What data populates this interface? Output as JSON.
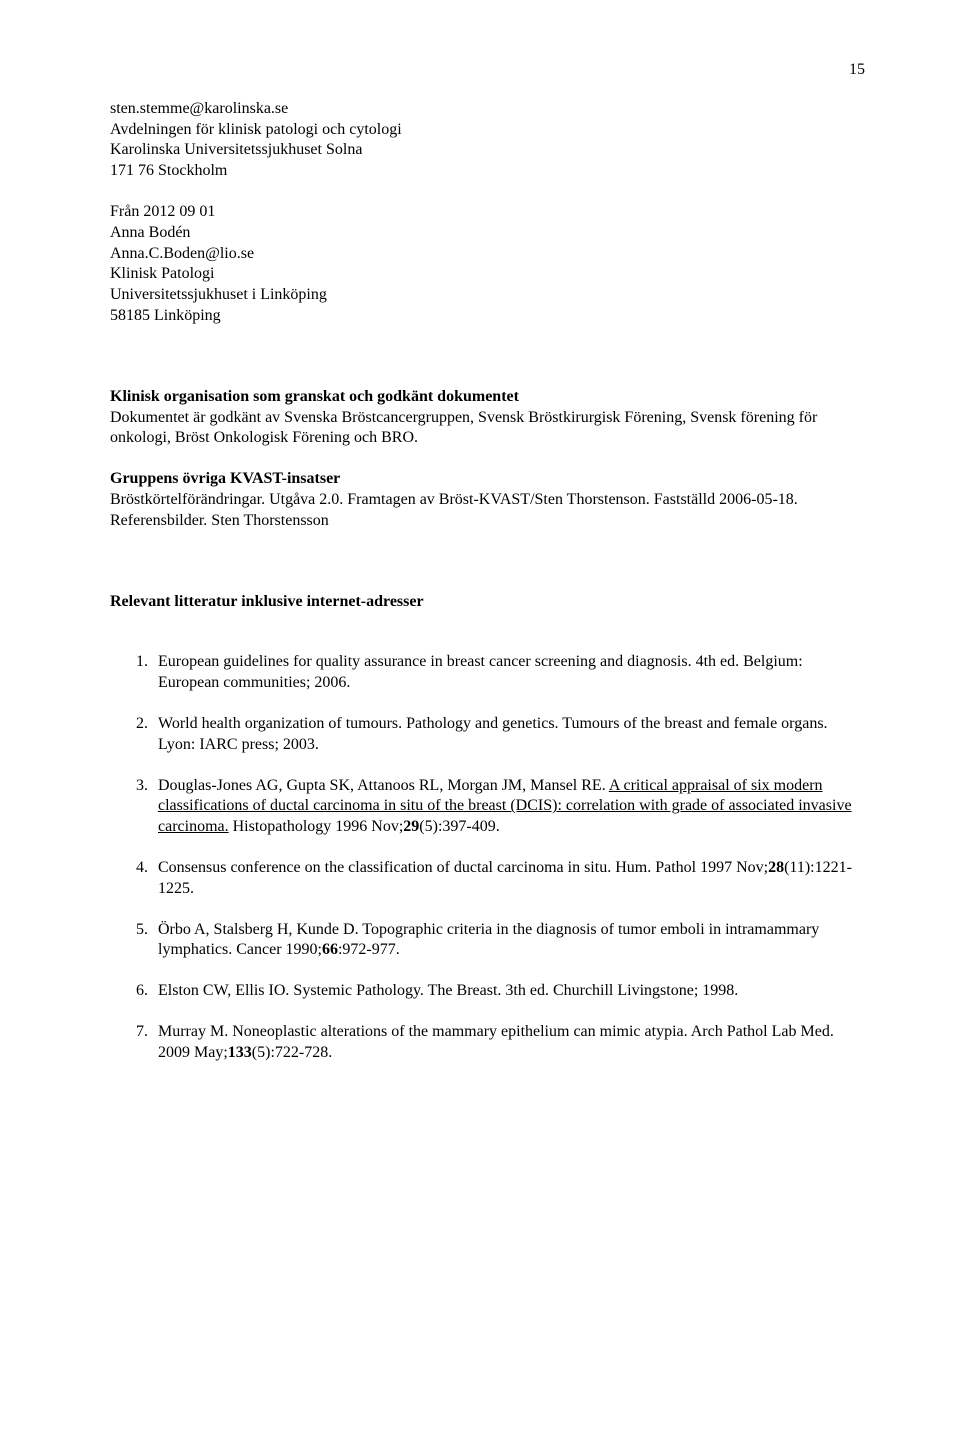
{
  "page_number": "15",
  "contact1": {
    "email": "sten.stemme@karolinska.se",
    "dept": "Avdelningen för klinisk patologi och cytologi",
    "hospital": "Karolinska Universitetssjukhuset Solna",
    "postal": "171 76 Stockholm"
  },
  "contact2": {
    "from_date": "Från 2012 09 01",
    "name": "Anna Bodén",
    "email": "Anna.C.Boden@lio.se",
    "dept": "Klinisk Patologi",
    "hospital": "Universitetssjukhuset i Linköping",
    "postal": "58185 Linköping"
  },
  "org_review": {
    "heading": "Klinisk organisation som granskat och godkänt dokumentet",
    "text": "Dokumentet är godkänt av Svenska Bröstcancergruppen, Svensk Bröstkirurgisk Förening, Svensk förening för onkologi, Bröst Onkologisk Förening och BRO."
  },
  "kvast": {
    "heading": "Gruppens övriga KVAST-insatser",
    "line1": "Bröstkörtelförändringar. Utgåva 2.0. Framtagen av Bröst-KVAST/Sten Thorstenson. Fastställd 2006-05-18.",
    "line2": "Referensbilder. Sten Thorstensson"
  },
  "litterature_heading": "Relevant litteratur inklusive internet-adresser",
  "references": [
    {
      "pre": "European guidelines for quality assurance in breast cancer screening and diagnosis. 4th ed. Belgium: European communities; 2006."
    },
    {
      "pre": "World health organization of tumours. Pathology and genetics. Tumours of the breast and female organs. Lyon: IARC press; 2003."
    },
    {
      "pre": "Douglas-Jones AG, Gupta SK, Attanoos RL, Morgan JM, Mansel RE. ",
      "link": "A critical appraisal of six modern classifications of ductal carcinoma in situ of the breast (DCIS): correlation with grade of associated invasive carcinoma.",
      "post1": " Histopathology 1996 Nov;",
      "bold": "29",
      "post2": "(5):397-409."
    },
    {
      "pre": "Consensus conference on the classification of ductal carcinoma in situ. Hum. Pathol 1997 Nov;",
      "bold": "28",
      "post2": "(11):1221-1225."
    },
    {
      "pre": "Örbo A, Stalsberg H, Kunde D. Topographic criteria in the diagnosis of tumor emboli in intramammary lymphatics. Cancer 1990;",
      "bold": "66",
      "post2": ":972-977."
    },
    {
      "pre": "Elston CW, Ellis IO. Systemic Pathology. The Breast. 3th ed. Churchill Livingstone; 1998."
    },
    {
      "pre": "Murray M. Noneoplastic alterations of the mammary epithelium can mimic atypia. Arch Pathol Lab Med. 2009 May;",
      "bold": "133",
      "post2": "(5):722-728."
    }
  ]
}
